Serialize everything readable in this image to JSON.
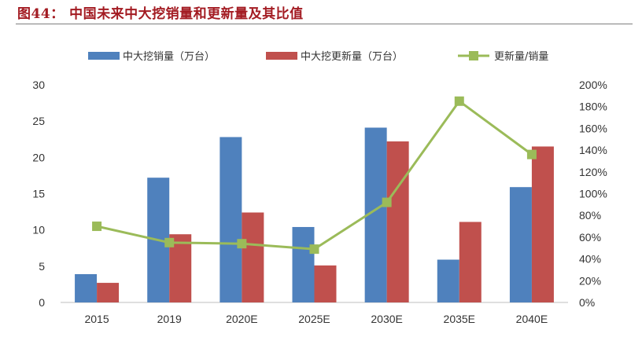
{
  "figure": {
    "title": "图44： 中国未来中大挖销量和更新量及其比值"
  },
  "chart_data": {
    "type": "bar",
    "categories": [
      "2015",
      "2019",
      "2020E",
      "2025E",
      "2030E",
      "2035E",
      "2040E"
    ],
    "series": [
      {
        "name": "中大挖销量（万台）",
        "kind": "bar",
        "axis": "left",
        "color": "#4f81bd",
        "values": [
          3.9,
          17.2,
          22.8,
          10.4,
          24.1,
          5.9,
          15.9
        ]
      },
      {
        "name": "中大挖更新量（万台）",
        "kind": "bar",
        "axis": "left",
        "color": "#c0504d",
        "values": [
          2.7,
          9.4,
          12.4,
          5.1,
          22.2,
          11.1,
          21.5
        ]
      },
      {
        "name": "更新量/销量",
        "kind": "line",
        "axis": "right",
        "color": "#9bbb59",
        "values": [
          70,
          55,
          54,
          49,
          92,
          185,
          136
        ]
      }
    ],
    "y_left": {
      "min": 0,
      "max": 30,
      "ticks": [
        "0",
        "5",
        "10",
        "15",
        "20",
        "25",
        "30"
      ]
    },
    "y_right": {
      "min": 0,
      "max": 200,
      "ticks": [
        "0%",
        "20%",
        "40%",
        "60%",
        "80%",
        "100%",
        "120%",
        "140%",
        "160%",
        "180%",
        "200%"
      ]
    },
    "xlabel": "",
    "ylabel": "",
    "grid": false,
    "legend_position": "top"
  }
}
